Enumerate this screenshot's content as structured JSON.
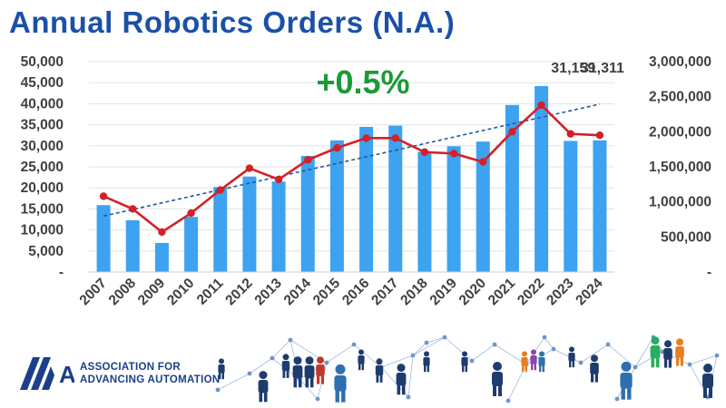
{
  "title": "Annual Robotics Orders (N.A.)",
  "colors": {
    "title": "#1b50a8",
    "bars": "#3da2f0",
    "line": "#d42027",
    "trend": "#1f5aa0",
    "growth": "#1c9a35",
    "axis_text": "#404040",
    "brand": "#1b3f8a"
  },
  "chart_data": {
    "type": "bar",
    "title": "Annual Robotics Orders (N.A.)",
    "categories": [
      "2007",
      "2008",
      "2009",
      "2010",
      "2011",
      "2012",
      "2013",
      "2014",
      "2015",
      "2016",
      "2017",
      "2018",
      "2019",
      "2020",
      "2021",
      "2022",
      "2023",
      "2024"
    ],
    "series": [
      {
        "type": "bar",
        "axis": "left",
        "values": [
          15900,
          12300,
          6900,
          13100,
          20200,
          22700,
          21500,
          27600,
          31300,
          34500,
          34800,
          28600,
          29900,
          31000,
          39700,
          44200,
          31159,
          31311
        ]
      },
      {
        "type": "line",
        "axis": "right",
        "values": [
          1080000,
          900000,
          570000,
          840000,
          1170000,
          1480000,
          1320000,
          1600000,
          1770000,
          1910000,
          1910000,
          1710000,
          1690000,
          1570000,
          2000000,
          2380000,
          1970000,
          1950000
        ]
      }
    ],
    "trendline": {
      "type": "linear",
      "axis": "left",
      "from": 13300,
      "to": 39900
    },
    "ylim_left": [
      0,
      50000
    ],
    "yticks_left": [
      "-",
      "5,000",
      "10,000",
      "15,000",
      "20,000",
      "25,000",
      "30,000",
      "35,000",
      "40,000",
      "45,000",
      "50,000"
    ],
    "ylim_right": [
      0,
      3000000
    ],
    "yticks_right": [
      "-",
      "500,000",
      "1,000,000",
      "1,500,000",
      "2,000,000",
      "2,500,000",
      "3,000,000"
    ],
    "data_labels": [
      {
        "category": "2023",
        "text": "31,159"
      },
      {
        "category": "2024",
        "text": "31,311"
      }
    ],
    "annotation": "+0.5%",
    "grid": true,
    "legend": "none"
  },
  "footer": {
    "logo_text": "A3",
    "org_line1": "ASSOCIATION FOR",
    "org_line2": "ADVANCING AUTOMATION"
  }
}
